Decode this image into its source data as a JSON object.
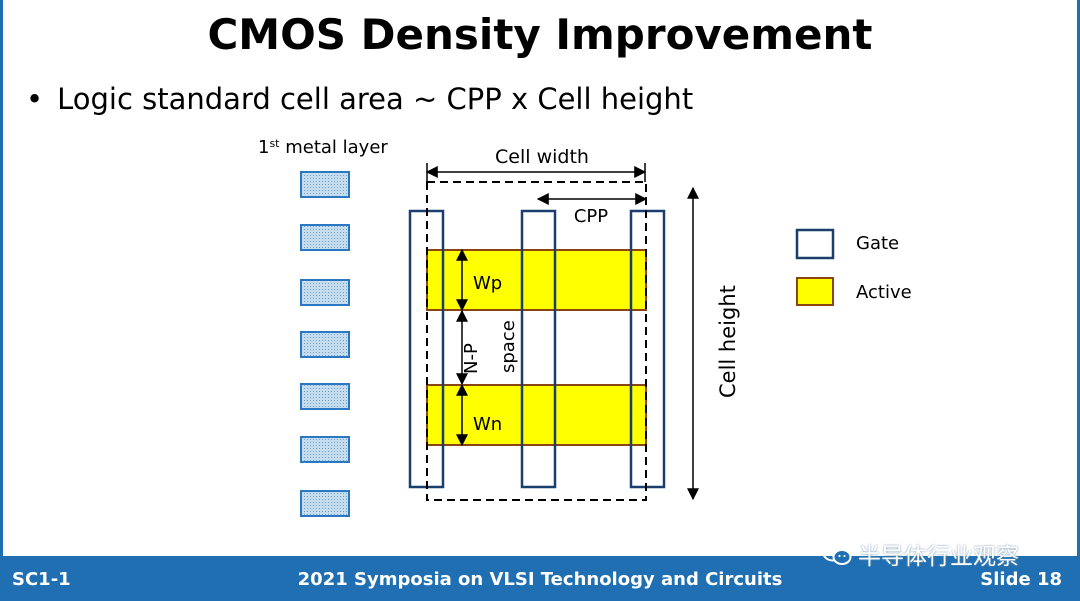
{
  "slide": {
    "title": "CMOS Density Improvement",
    "bullet": "Logic standard cell area ~ CPP x Cell height"
  },
  "diagram": {
    "metal_layer_label_base": "1",
    "metal_layer_label_sup": "st",
    "metal_layer_label_rest": " metal layer",
    "cell_width_label": "Cell width",
    "cpp_label": "CPP",
    "wp_label": "Wp",
    "np_space_label_1": "N-P",
    "np_space_label_2": "space",
    "wn_label": "Wn",
    "cell_height_label": "Cell height",
    "legend": [
      {
        "label": "Gate"
      },
      {
        "label": "Active"
      }
    ],
    "colors": {
      "gate_stroke": "#1a3f6f",
      "active_fill": "#ffff00",
      "active_stroke": "#8b4513",
      "metal_fill": "#c6ddef",
      "metal_stroke": "#2b78c2"
    }
  },
  "footer": {
    "left": "SC1-1",
    "center": "2021 Symposia on VLSI Technology and Circuits",
    "right": "Slide 18"
  },
  "watermark": {
    "text": "半导体行业观察",
    "icon": "wechat-icon"
  }
}
